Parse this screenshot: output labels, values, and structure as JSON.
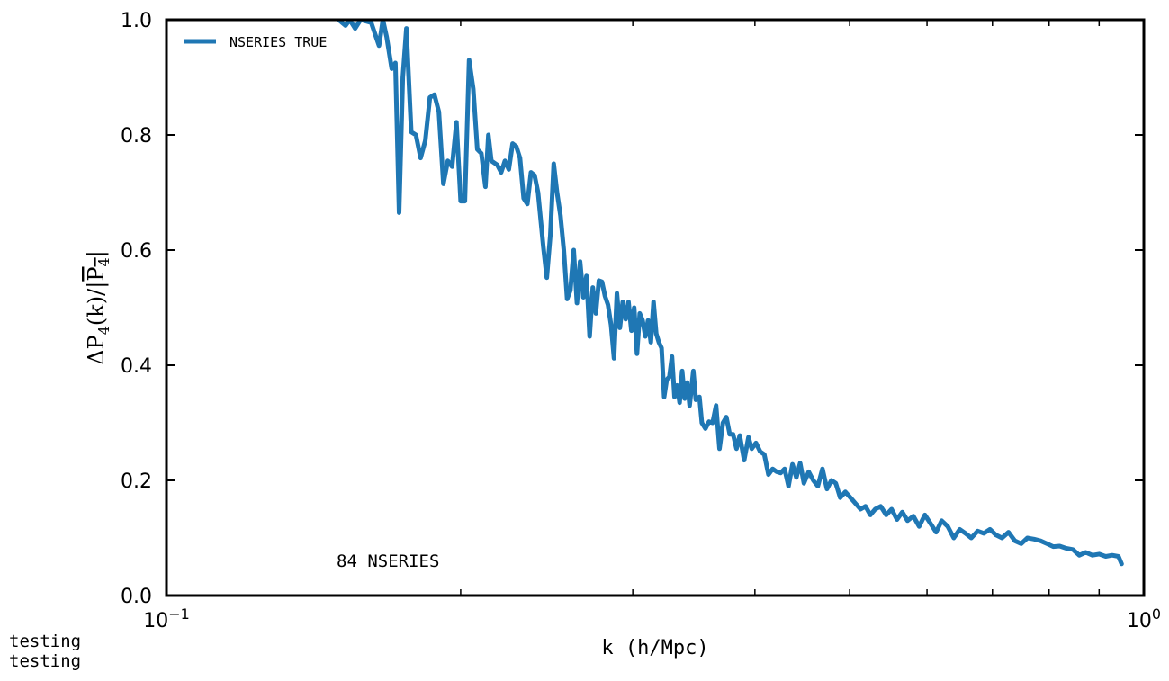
{
  "chart_data": {
    "type": "line",
    "xlabel": "k (h/Mpc)",
    "ylabel": {
      "base": "ΔP",
      "sub1": "4",
      "mid": "(k)/|",
      "over": "P",
      "sub2": "4",
      "end": "|"
    },
    "xscale": "log",
    "xlim": [
      0.1,
      1.0
    ],
    "ylim": [
      0.0,
      1.0
    ],
    "x_ticks": [
      {
        "value": 0.1,
        "base": "10",
        "exp": "−1"
      },
      {
        "value": 1.0,
        "base": "10",
        "exp": "0"
      }
    ],
    "y_ticks": [
      {
        "value": 0.0,
        "label": "0.0"
      },
      {
        "value": 0.2,
        "label": "0.2"
      },
      {
        "value": 0.4,
        "label": "0.4"
      },
      {
        "value": 0.6,
        "label": "0.6"
      },
      {
        "value": 0.8,
        "label": "0.8"
      },
      {
        "value": 1.0,
        "label": "1.0"
      }
    ],
    "grid": false,
    "legend_position": "top-left",
    "annotation": "84 NSERIES",
    "series": [
      {
        "name": "NSERIES TRUE",
        "color": "#1f77b4",
        "points": [
          [
            0.15,
            1.0
          ],
          [
            0.1525,
            0.99
          ],
          [
            0.154,
            1.0
          ],
          [
            0.156,
            0.985
          ],
          [
            0.158,
            1.0
          ],
          [
            0.162,
            0.995
          ],
          [
            0.165,
            0.955
          ],
          [
            0.1665,
            1.0
          ],
          [
            0.168,
            0.97
          ],
          [
            0.17,
            0.915
          ],
          [
            0.1715,
            0.925
          ],
          [
            0.173,
            0.665
          ],
          [
            0.1745,
            0.9
          ],
          [
            0.176,
            0.985
          ],
          [
            0.178,
            0.805
          ],
          [
            0.18,
            0.8
          ],
          [
            0.182,
            0.76
          ],
          [
            0.184,
            0.79
          ],
          [
            0.186,
            0.865
          ],
          [
            0.188,
            0.87
          ],
          [
            0.19,
            0.84
          ],
          [
            0.192,
            0.715
          ],
          [
            0.194,
            0.755
          ],
          [
            0.196,
            0.745
          ],
          [
            0.198,
            0.822
          ],
          [
            0.2,
            0.685
          ],
          [
            0.202,
            0.685
          ],
          [
            0.204,
            0.93
          ],
          [
            0.206,
            0.88
          ],
          [
            0.208,
            0.775
          ],
          [
            0.21,
            0.768
          ],
          [
            0.212,
            0.71
          ],
          [
            0.2135,
            0.8
          ],
          [
            0.215,
            0.755
          ],
          [
            0.218,
            0.748
          ],
          [
            0.22,
            0.735
          ],
          [
            0.222,
            0.755
          ],
          [
            0.224,
            0.74
          ],
          [
            0.226,
            0.785
          ],
          [
            0.228,
            0.78
          ],
          [
            0.23,
            0.76
          ],
          [
            0.232,
            0.69
          ],
          [
            0.234,
            0.68
          ],
          [
            0.236,
            0.735
          ],
          [
            0.238,
            0.73
          ],
          [
            0.24,
            0.7
          ],
          [
            0.243,
            0.605
          ],
          [
            0.245,
            0.552
          ],
          [
            0.247,
            0.625
          ],
          [
            0.249,
            0.75
          ],
          [
            0.251,
            0.7
          ],
          [
            0.253,
            0.66
          ],
          [
            0.255,
            0.6
          ],
          [
            0.257,
            0.515
          ],
          [
            0.259,
            0.53
          ],
          [
            0.261,
            0.6
          ],
          [
            0.263,
            0.508
          ],
          [
            0.265,
            0.58
          ],
          [
            0.267,
            0.518
          ],
          [
            0.269,
            0.555
          ],
          [
            0.271,
            0.45
          ],
          [
            0.273,
            0.535
          ],
          [
            0.275,
            0.49
          ],
          [
            0.277,
            0.547
          ],
          [
            0.279,
            0.545
          ],
          [
            0.281,
            0.52
          ],
          [
            0.283,
            0.505
          ],
          [
            0.285,
            0.47
          ],
          [
            0.287,
            0.412
          ],
          [
            0.289,
            0.525
          ],
          [
            0.291,
            0.465
          ],
          [
            0.293,
            0.51
          ],
          [
            0.295,
            0.48
          ],
          [
            0.297,
            0.51
          ],
          [
            0.299,
            0.46
          ],
          [
            0.301,
            0.5
          ],
          [
            0.303,
            0.42
          ],
          [
            0.305,
            0.49
          ],
          [
            0.307,
            0.478
          ],
          [
            0.309,
            0.45
          ],
          [
            0.311,
            0.478
          ],
          [
            0.313,
            0.44
          ],
          [
            0.315,
            0.51
          ],
          [
            0.317,
            0.455
          ],
          [
            0.319,
            0.44
          ],
          [
            0.321,
            0.43
          ],
          [
            0.323,
            0.345
          ],
          [
            0.325,
            0.375
          ],
          [
            0.327,
            0.38
          ],
          [
            0.329,
            0.415
          ],
          [
            0.331,
            0.345
          ],
          [
            0.333,
            0.365
          ],
          [
            0.335,
            0.335
          ],
          [
            0.337,
            0.39
          ],
          [
            0.339,
            0.342
          ],
          [
            0.341,
            0.37
          ],
          [
            0.343,
            0.33
          ],
          [
            0.346,
            0.39
          ],
          [
            0.348,
            0.34
          ],
          [
            0.351,
            0.345
          ],
          [
            0.353,
            0.3
          ],
          [
            0.356,
            0.29
          ],
          [
            0.359,
            0.302
          ],
          [
            0.362,
            0.3
          ],
          [
            0.365,
            0.33
          ],
          [
            0.368,
            0.255
          ],
          [
            0.371,
            0.3
          ],
          [
            0.374,
            0.31
          ],
          [
            0.377,
            0.28
          ],
          [
            0.38,
            0.28
          ],
          [
            0.383,
            0.255
          ],
          [
            0.386,
            0.278
          ],
          [
            0.39,
            0.235
          ],
          [
            0.394,
            0.275
          ],
          [
            0.397,
            0.255
          ],
          [
            0.401,
            0.265
          ],
          [
            0.405,
            0.25
          ],
          [
            0.409,
            0.245
          ],
          [
            0.413,
            0.21
          ],
          [
            0.417,
            0.22
          ],
          [
            0.421,
            0.215
          ],
          [
            0.425,
            0.213
          ],
          [
            0.429,
            0.22
          ],
          [
            0.433,
            0.19
          ],
          [
            0.437,
            0.228
          ],
          [
            0.441,
            0.205
          ],
          [
            0.445,
            0.23
          ],
          [
            0.449,
            0.195
          ],
          [
            0.454,
            0.215
          ],
          [
            0.459,
            0.2
          ],
          [
            0.464,
            0.19
          ],
          [
            0.469,
            0.22
          ],
          [
            0.474,
            0.185
          ],
          [
            0.479,
            0.2
          ],
          [
            0.484,
            0.195
          ],
          [
            0.489,
            0.17
          ],
          [
            0.495,
            0.18
          ],
          [
            0.501,
            0.17
          ],
          [
            0.507,
            0.16
          ],
          [
            0.513,
            0.15
          ],
          [
            0.519,
            0.155
          ],
          [
            0.525,
            0.14
          ],
          [
            0.531,
            0.15
          ],
          [
            0.538,
            0.155
          ],
          [
            0.545,
            0.14
          ],
          [
            0.552,
            0.15
          ],
          [
            0.559,
            0.132
          ],
          [
            0.566,
            0.145
          ],
          [
            0.573,
            0.13
          ],
          [
            0.581,
            0.138
          ],
          [
            0.589,
            0.12
          ],
          [
            0.597,
            0.14
          ],
          [
            0.605,
            0.125
          ],
          [
            0.613,
            0.11
          ],
          [
            0.621,
            0.13
          ],
          [
            0.63,
            0.12
          ],
          [
            0.639,
            0.1
          ],
          [
            0.648,
            0.115
          ],
          [
            0.657,
            0.108
          ],
          [
            0.666,
            0.1
          ],
          [
            0.676,
            0.112
          ],
          [
            0.686,
            0.108
          ],
          [
            0.696,
            0.115
          ],
          [
            0.706,
            0.105
          ],
          [
            0.716,
            0.1
          ],
          [
            0.727,
            0.11
          ],
          [
            0.738,
            0.095
          ],
          [
            0.749,
            0.09
          ],
          [
            0.76,
            0.1
          ],
          [
            0.772,
            0.098
          ],
          [
            0.784,
            0.095
          ],
          [
            0.796,
            0.09
          ],
          [
            0.808,
            0.085
          ],
          [
            0.82,
            0.086
          ],
          [
            0.833,
            0.082
          ],
          [
            0.846,
            0.08
          ],
          [
            0.859,
            0.07
          ],
          [
            0.872,
            0.075
          ],
          [
            0.886,
            0.07
          ],
          [
            0.9,
            0.072
          ],
          [
            0.914,
            0.068
          ],
          [
            0.928,
            0.07
          ],
          [
            0.942,
            0.068
          ],
          [
            0.949,
            0.055
          ]
        ]
      }
    ]
  },
  "footnote_lines": [
    "testing",
    "testing"
  ]
}
